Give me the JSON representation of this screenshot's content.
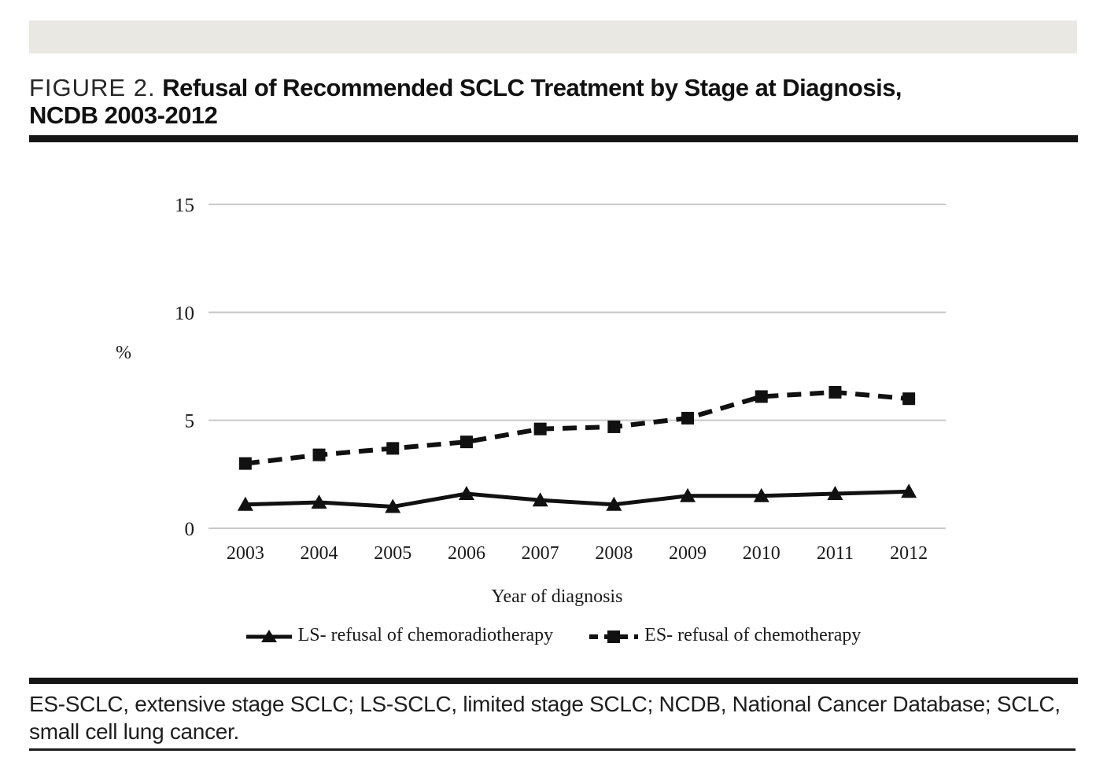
{
  "header": {
    "figure_label": "FIGURE 2.",
    "title_line1": "Refusal of Recommended SCLC Treatment by Stage at Diagnosis,",
    "title_line2": "NCDB 2003-2012"
  },
  "chart_data": {
    "type": "line",
    "title": "Refusal of Recommended SCLC Treatment by Stage at Diagnosis, NCDB 2003-2012",
    "x_categories": [
      "2003",
      "2004",
      "2005",
      "2006",
      "2007",
      "2008",
      "2009",
      "2010",
      "2011",
      "2012"
    ],
    "xlabel": "Year of diagnosis",
    "ylabel": "%",
    "ylim": [
      0,
      15
    ],
    "yticks": [
      0,
      5,
      10,
      15
    ],
    "grid": "horizontal",
    "legend_position": "bottom-center",
    "series": [
      {
        "name": "LS- refusal of chemoradiotherapy",
        "line_style": "solid",
        "marker": "triangle",
        "color": "#111111",
        "values": [
          1.1,
          1.2,
          1.0,
          1.6,
          1.3,
          1.1,
          1.5,
          1.5,
          1.6,
          1.7
        ]
      },
      {
        "name": "ES- refusal of chemotherapy",
        "line_style": "dashed",
        "marker": "square",
        "color": "#111111",
        "values": [
          3.0,
          3.4,
          3.7,
          4.0,
          4.6,
          4.7,
          5.1,
          6.1,
          6.3,
          6.0
        ]
      }
    ]
  },
  "colors": {
    "ink": "#111111",
    "gridline": "#c9c9c9",
    "header_band": "#e9e8e3"
  },
  "footnote": {
    "text": "ES-SCLC, extensive stage SCLC; LS-SCLC, limited stage SCLC; NCDB, National Cancer Database; SCLC, small cell lung cancer."
  }
}
